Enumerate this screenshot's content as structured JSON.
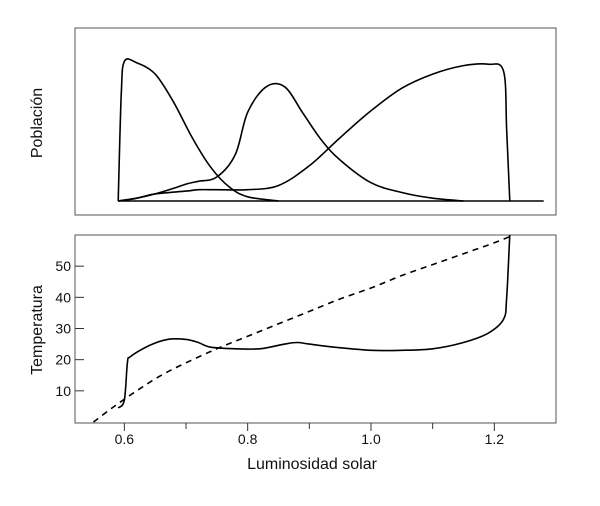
{
  "chart_data": [
    {
      "type": "line",
      "ylabel": "Población",
      "xlim": [
        0.52,
        1.3
      ],
      "ylim": [
        0,
        1
      ],
      "series": [
        {
          "x": [
            0.59,
            0.595,
            0.6,
            0.62,
            0.65,
            0.68,
            0.71,
            0.74,
            0.77,
            0.8,
            0.85
          ],
          "y": [
            0.0,
            0.75,
            0.99,
            0.98,
            0.9,
            0.7,
            0.45,
            0.24,
            0.1,
            0.03,
            0.0
          ]
        },
        {
          "x": [
            0.59,
            0.62,
            0.65,
            0.68,
            0.7,
            0.72,
            0.75,
            0.78,
            0.8,
            0.83,
            0.86,
            0.89,
            0.92,
            0.95,
            1.0,
            1.05,
            1.1,
            1.15
          ],
          "y": [
            0.0,
            0.02,
            0.05,
            0.09,
            0.12,
            0.14,
            0.17,
            0.33,
            0.63,
            0.81,
            0.81,
            0.62,
            0.43,
            0.29,
            0.13,
            0.06,
            0.02,
            0.0
          ]
        },
        {
          "x": [
            0.59,
            0.62,
            0.65,
            0.7,
            0.72,
            0.75,
            0.8,
            0.85,
            0.9,
            0.95,
            1.0,
            1.05,
            1.1,
            1.15,
            1.19,
            1.215,
            1.22,
            1.225
          ],
          "y": [
            0.0,
            0.02,
            0.05,
            0.07,
            0.08,
            0.08,
            0.08,
            0.11,
            0.25,
            0.45,
            0.64,
            0.8,
            0.9,
            0.96,
            0.97,
            0.92,
            0.5,
            0.0
          ]
        },
        {
          "x": [
            0.59,
            1.28
          ],
          "y": [
            0.0,
            0.0
          ]
        }
      ]
    },
    {
      "type": "line",
      "xlabel": "Luminosidad solar",
      "ylabel": "Temperatura",
      "xlim": [
        0.52,
        1.3
      ],
      "ylim": [
        0,
        60
      ],
      "x_ticks": [
        "0.6",
        "0.8",
        "1.0",
        "1.2"
      ],
      "y_ticks": [
        "10",
        "20",
        "30",
        "40",
        "50"
      ],
      "series": [
        {
          "x": [
            0.59,
            0.6,
            0.605,
            0.61,
            0.64,
            0.67,
            0.7,
            0.72,
            0.74,
            0.78,
            0.82,
            0.86,
            0.88,
            0.9,
            0.94,
            1.0,
            1.05,
            1.1,
            1.15,
            1.19,
            1.215,
            1.22,
            1.225
          ],
          "y": [
            4.5,
            7,
            19,
            21,
            24.5,
            26.5,
            26.5,
            25.5,
            24,
            23.5,
            23.5,
            25,
            25.5,
            25,
            24,
            23,
            23,
            23.5,
            25.5,
            28.5,
            33,
            40,
            60
          ]
        },
        {
          "x": [
            0.55,
            0.58,
            0.62,
            0.66,
            0.7,
            0.75,
            0.8,
            0.85,
            0.9,
            0.95,
            1.0,
            1.05,
            1.1,
            1.15,
            1.2,
            1.225
          ],
          "y": [
            0,
            4.5,
            10,
            15,
            19,
            23.5,
            27.5,
            31.5,
            35.5,
            39.5,
            43,
            47,
            50.5,
            54,
            57.5,
            59.5
          ]
        }
      ]
    }
  ]
}
